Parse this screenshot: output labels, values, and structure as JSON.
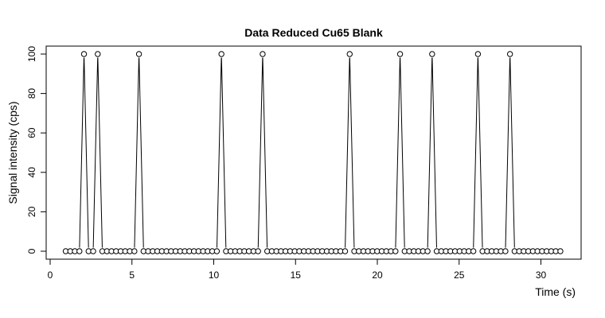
{
  "chart_data": {
    "type": "line",
    "title": "Data Reduced Cu65 Blank",
    "xlabel": "Time (s)",
    "ylabel": "Signal intensity (cps)",
    "xlim": [
      0,
      32
    ],
    "ylim": [
      0,
      100
    ],
    "x_ticks": [
      0,
      5,
      10,
      15,
      20,
      25,
      30
    ],
    "y_ticks": [
      0,
      20,
      40,
      60,
      80,
      100
    ],
    "grid": false,
    "legend": "none",
    "series": [
      {
        "x": [
          0.95,
          1.23,
          1.51,
          1.79,
          2.07,
          2.35,
          2.63,
          2.91,
          3.19,
          3.47,
          3.75,
          4.03,
          4.31,
          4.59,
          4.87,
          5.15,
          5.43,
          5.71,
          5.99,
          6.27,
          6.55,
          6.83,
          7.11,
          7.39,
          7.67,
          7.95,
          8.23,
          8.51,
          8.79,
          9.07,
          9.35,
          9.63,
          9.91,
          10.19,
          10.47,
          10.75,
          11.03,
          11.31,
          11.59,
          11.87,
          12.15,
          12.43,
          12.71,
          12.99,
          13.27,
          13.55,
          13.83,
          14.11,
          14.39,
          14.67,
          14.95,
          15.23,
          15.51,
          15.79,
          16.07,
          16.35,
          16.63,
          16.91,
          17.19,
          17.47,
          17.75,
          18.03,
          18.31,
          18.59,
          18.87,
          19.15,
          19.43,
          19.71,
          19.99,
          20.27,
          20.55,
          20.83,
          21.11,
          21.39,
          21.67,
          21.95,
          22.23,
          22.51,
          22.79,
          23.07,
          23.35,
          23.63,
          23.91,
          24.19,
          24.47,
          24.75,
          25.03,
          25.31,
          25.59,
          25.87,
          26.15,
          26.43,
          26.71,
          26.99,
          27.27,
          27.55,
          27.83,
          28.11,
          28.39,
          28.67,
          28.95,
          29.23,
          29.51,
          29.79,
          30.07,
          30.35,
          30.63,
          30.91,
          31.19
        ],
        "values": [
          0,
          0,
          0,
          0,
          100,
          0,
          0,
          100,
          0,
          0,
          0,
          0,
          0,
          0,
          0,
          0,
          100,
          0,
          0,
          0,
          0,
          0,
          0,
          0,
          0,
          0,
          0,
          0,
          0,
          0,
          0,
          0,
          0,
          0,
          100,
          0,
          0,
          0,
          0,
          0,
          0,
          0,
          0,
          100,
          0,
          0,
          0,
          0,
          0,
          0,
          0,
          0,
          0,
          0,
          0,
          0,
          0,
          0,
          0,
          0,
          0,
          0,
          100,
          0,
          0,
          0,
          0,
          0,
          0,
          0,
          0,
          0,
          0,
          100,
          0,
          0,
          0,
          0,
          0,
          0,
          100,
          0,
          0,
          0,
          0,
          0,
          0,
          0,
          0,
          0,
          100,
          0,
          0,
          0,
          0,
          0,
          0,
          100,
          0,
          0,
          0,
          0,
          0,
          0,
          0,
          0,
          0,
          0,
          0
        ]
      }
    ]
  }
}
